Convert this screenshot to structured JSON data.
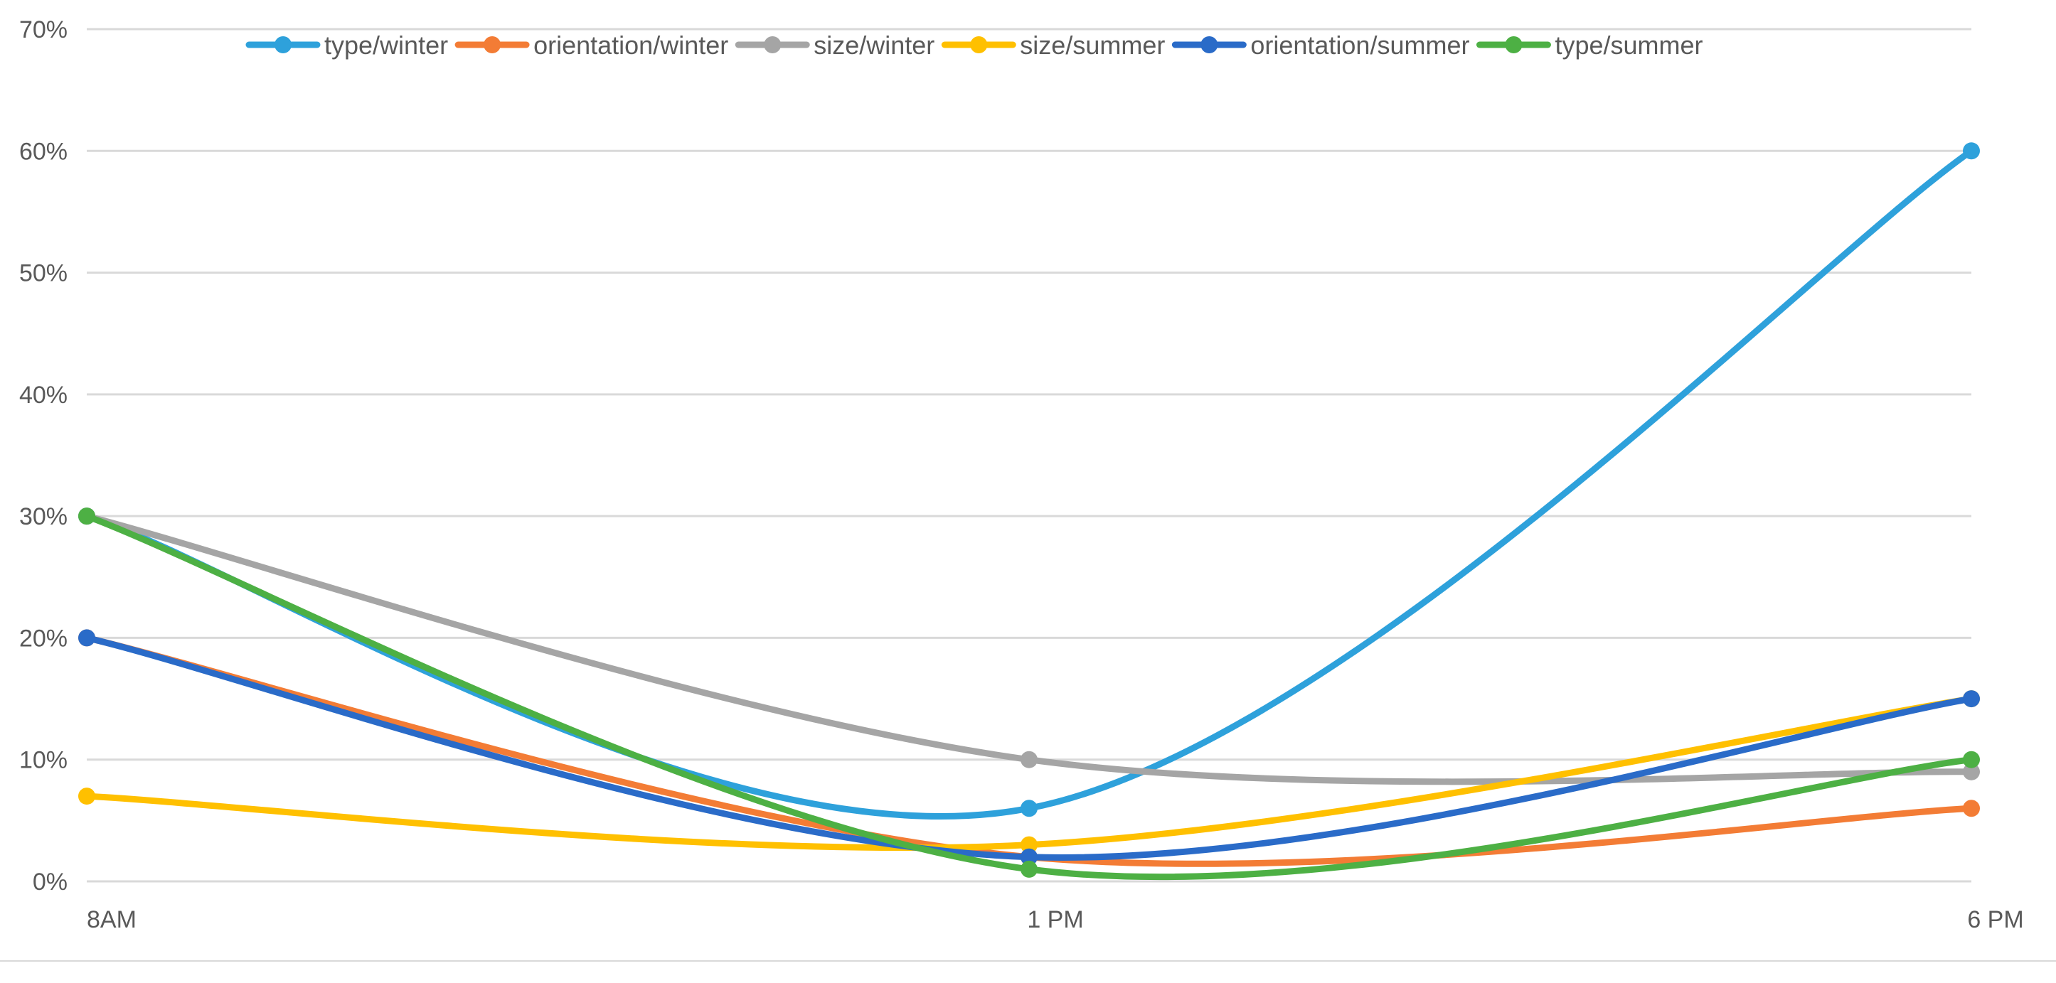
{
  "chart_data": {
    "type": "line",
    "smooth": true,
    "categories": [
      "8AM",
      "1 PM",
      "6 PM"
    ],
    "ylim": [
      0,
      70
    ],
    "y_ticks": [
      {
        "value": 0,
        "label": "0%"
      },
      {
        "value": 10,
        "label": "10%"
      },
      {
        "value": 20,
        "label": "20%"
      },
      {
        "value": 30,
        "label": "30%"
      },
      {
        "value": 40,
        "label": "40%"
      },
      {
        "value": 50,
        "label": "50%"
      },
      {
        "value": 60,
        "label": "60%"
      },
      {
        "value": 70,
        "label": "70%"
      }
    ],
    "grid": true,
    "legend_position": "top",
    "series": [
      {
        "name": "type/winter",
        "color": "#2ea1db",
        "values": [
          30,
          6,
          60
        ]
      },
      {
        "name": "orientation/winter",
        "color": "#f37c35",
        "values": [
          20,
          2,
          6
        ]
      },
      {
        "name": "size/winter",
        "color": "#a5a5a5",
        "values": [
          30,
          10,
          9
        ]
      },
      {
        "name": "size/summer",
        "color": "#ffc000",
        "values": [
          7,
          3,
          15
        ]
      },
      {
        "name": "orientation/summer",
        "color": "#2a6bc8",
        "values": [
          20,
          2,
          15
        ]
      },
      {
        "name": "type/summer",
        "color": "#4db044",
        "values": [
          30,
          1,
          10
        ]
      }
    ]
  }
}
